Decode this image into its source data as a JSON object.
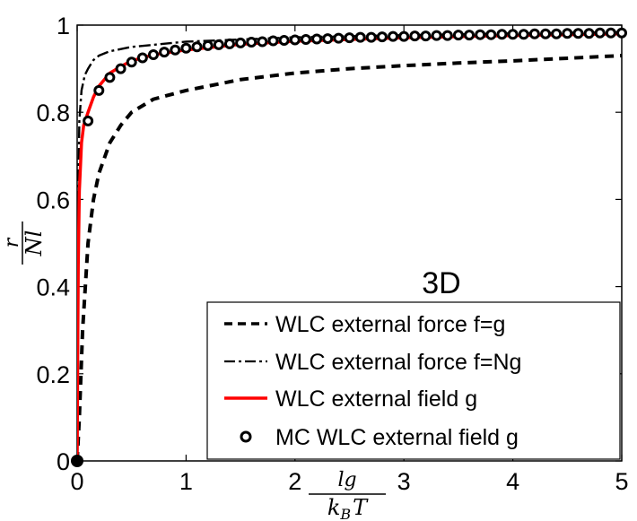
{
  "chart_data": {
    "type": "line",
    "title": "",
    "annotation": "3D",
    "xlabel": {
      "numerator": "lg",
      "denominator_base": "k",
      "denominator_sub": "B",
      "denominator_tail": "T"
    },
    "ylabel": {
      "numerator": "r",
      "denominator": "Nl"
    },
    "xlim": [
      0,
      5
    ],
    "ylim": [
      0,
      1
    ],
    "xticks": [
      0,
      1,
      2,
      3,
      4,
      5
    ],
    "xtick_labels": [
      "0",
      "1",
      "2",
      "3",
      "4",
      "5"
    ],
    "yticks": [
      0,
      0.2,
      0.4,
      0.6,
      0.8,
      1
    ],
    "ytick_labels": [
      "0",
      "0.2",
      "0.4",
      "0.6",
      "0.8",
      "1"
    ],
    "grid": false,
    "legend_position": "bottom-right",
    "series": [
      {
        "name": "WLC external force f=g",
        "style": "dashed",
        "color": "#000000",
        "x": [
          0,
          0.01,
          0.02,
          0.05,
          0.1,
          0.15,
          0.2,
          0.3,
          0.4,
          0.5,
          0.7,
          1.0,
          1.5,
          2.0,
          2.5,
          3.0,
          3.5,
          4.0,
          4.5,
          5.0
        ],
        "y": [
          0,
          0.05,
          0.1,
          0.3,
          0.5,
          0.6,
          0.66,
          0.73,
          0.77,
          0.8,
          0.83,
          0.85,
          0.875,
          0.89,
          0.9,
          0.907,
          0.913,
          0.918,
          0.924,
          0.93
        ]
      },
      {
        "name": "WLC external force f=Ng",
        "style": "dash-dot",
        "color": "#000000",
        "x": [
          0,
          0.005,
          0.01,
          0.02,
          0.04,
          0.07,
          0.1,
          0.15,
          0.2,
          0.3,
          0.5,
          1.0,
          2.0,
          3.0,
          4.0,
          5.0
        ],
        "y": [
          0,
          0.35,
          0.6,
          0.78,
          0.85,
          0.885,
          0.9,
          0.92,
          0.93,
          0.94,
          0.95,
          0.962,
          0.972,
          0.977,
          0.981,
          0.984
        ]
      },
      {
        "name": "WLC external field g",
        "style": "solid",
        "color": "#ff0000",
        "x": [
          0,
          0.005,
          0.01,
          0.02,
          0.04,
          0.06,
          0.1,
          0.15,
          0.2,
          0.3,
          0.4,
          0.5,
          0.7,
          1.0,
          1.5,
          2.0,
          3.0,
          4.0,
          5.0
        ],
        "y": [
          0,
          0.25,
          0.45,
          0.62,
          0.73,
          0.77,
          0.8,
          0.835,
          0.86,
          0.89,
          0.905,
          0.918,
          0.932,
          0.943,
          0.956,
          0.963,
          0.971,
          0.976,
          0.98
        ]
      },
      {
        "name": "MC WLC external field g",
        "style": "markers",
        "color": "#000000",
        "x": [
          0,
          0.1,
          0.2,
          0.3,
          0.4,
          0.5,
          0.6,
          0.7,
          0.8,
          0.9,
          1.0,
          1.1,
          1.2,
          1.3,
          1.4,
          1.5,
          1.6,
          1.7,
          1.8,
          1.9,
          2.0,
          2.1,
          2.2,
          2.3,
          2.4,
          2.5,
          2.6,
          2.7,
          2.8,
          2.9,
          3.0,
          3.1,
          3.2,
          3.3,
          3.4,
          3.5,
          3.6,
          3.7,
          3.8,
          3.9,
          4.0,
          4.1,
          4.2,
          4.3,
          4.4,
          4.5,
          4.6,
          4.7,
          4.8,
          4.9,
          5.0
        ],
        "y": [
          0,
          0.78,
          0.85,
          0.88,
          0.9,
          0.915,
          0.925,
          0.932,
          0.938,
          0.943,
          0.947,
          0.95,
          0.953,
          0.955,
          0.957,
          0.959,
          0.961,
          0.962,
          0.964,
          0.965,
          0.966,
          0.967,
          0.968,
          0.969,
          0.97,
          0.971,
          0.972,
          0.972,
          0.973,
          0.974,
          0.974,
          0.975,
          0.975,
          0.976,
          0.976,
          0.977,
          0.977,
          0.978,
          0.978,
          0.979,
          0.979,
          0.979,
          0.98,
          0.98,
          0.98,
          0.981,
          0.981,
          0.981,
          0.982,
          0.982,
          0.982
        ]
      }
    ]
  }
}
